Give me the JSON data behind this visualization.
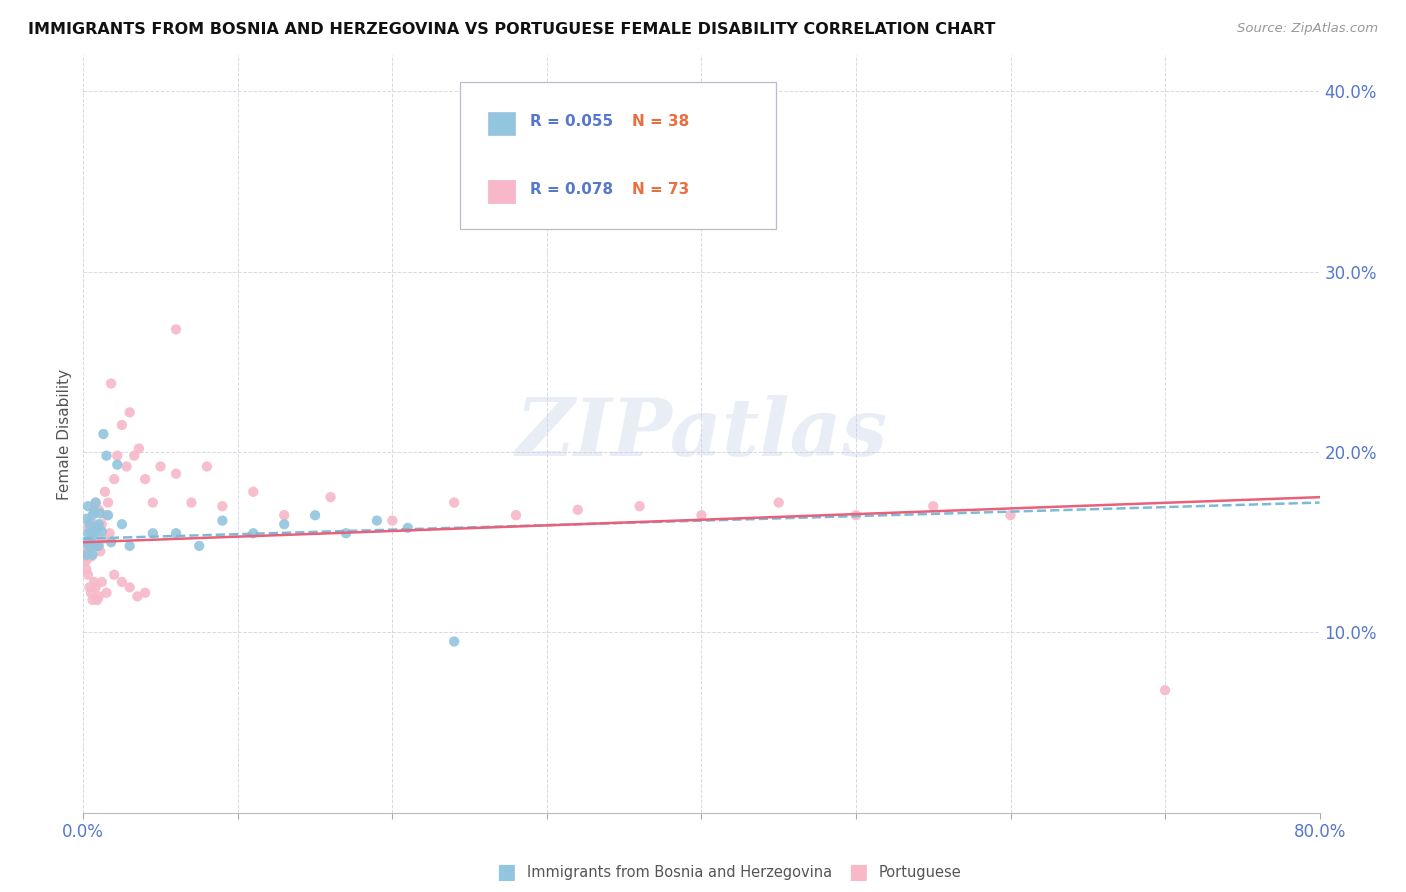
{
  "title": "IMMIGRANTS FROM BOSNIA AND HERZEGOVINA VS PORTUGUESE FEMALE DISABILITY CORRELATION CHART",
  "source_text": "Source: ZipAtlas.com",
  "ylabel": "Female Disability",
  "xlim": [
    0.0,
    0.8
  ],
  "ylim": [
    0.0,
    0.42
  ],
  "color_bosnia": "#92C5DE",
  "color_portuguese": "#F7B8C8",
  "line_color_bosnia": "#7BBBD6",
  "line_color_portuguese": "#E8607A",
  "watermark_color": "#C0D0E8",
  "background_color": "#FFFFFF",
  "grid_color": "#C8C8D8",
  "tick_color": "#5577CC",
  "title_color": "#111111",
  "source_color": "#999999",
  "legend_r_color": "#5577CC",
  "legend_n_color": "#E87040",
  "bosnia_x": [
    0.001,
    0.002,
    0.002,
    0.003,
    0.003,
    0.004,
    0.004,
    0.005,
    0.005,
    0.006,
    0.006,
    0.007,
    0.007,
    0.008,
    0.008,
    0.009,
    0.01,
    0.01,
    0.011,
    0.012,
    0.013,
    0.015,
    0.016,
    0.018,
    0.022,
    0.025,
    0.03,
    0.045,
    0.06,
    0.075,
    0.09,
    0.11,
    0.13,
    0.15,
    0.17,
    0.19,
    0.21,
    0.24
  ],
  "bosnia_y": [
    0.15,
    0.143,
    0.163,
    0.155,
    0.17,
    0.148,
    0.16,
    0.155,
    0.152,
    0.165,
    0.143,
    0.155,
    0.167,
    0.148,
    0.172,
    0.158,
    0.16,
    0.148,
    0.166,
    0.156,
    0.21,
    0.198,
    0.165,
    0.15,
    0.193,
    0.16,
    0.148,
    0.155,
    0.155,
    0.148,
    0.162,
    0.155,
    0.16,
    0.165,
    0.155,
    0.162,
    0.158,
    0.095
  ],
  "portuguese_x": [
    0.001,
    0.001,
    0.002,
    0.002,
    0.003,
    0.003,
    0.004,
    0.004,
    0.005,
    0.005,
    0.006,
    0.006,
    0.007,
    0.007,
    0.008,
    0.008,
    0.009,
    0.009,
    0.01,
    0.01,
    0.011,
    0.012,
    0.013,
    0.014,
    0.015,
    0.016,
    0.017,
    0.018,
    0.02,
    0.022,
    0.025,
    0.028,
    0.03,
    0.033,
    0.036,
    0.04,
    0.045,
    0.05,
    0.06,
    0.07,
    0.08,
    0.09,
    0.11,
    0.13,
    0.16,
    0.2,
    0.24,
    0.28,
    0.32,
    0.36,
    0.4,
    0.45,
    0.5,
    0.55,
    0.6,
    0.003,
    0.005,
    0.007,
    0.009,
    0.012,
    0.015,
    0.02,
    0.025,
    0.03,
    0.04,
    0.002,
    0.004,
    0.006,
    0.008,
    0.01,
    0.7,
    0.06,
    0.035
  ],
  "portuguese_y": [
    0.148,
    0.142,
    0.15,
    0.14,
    0.145,
    0.158,
    0.162,
    0.148,
    0.155,
    0.142,
    0.16,
    0.148,
    0.155,
    0.168,
    0.148,
    0.172,
    0.152,
    0.148,
    0.168,
    0.158,
    0.145,
    0.16,
    0.152,
    0.178,
    0.165,
    0.172,
    0.155,
    0.238,
    0.185,
    0.198,
    0.215,
    0.192,
    0.222,
    0.198,
    0.202,
    0.185,
    0.172,
    0.192,
    0.188,
    0.172,
    0.192,
    0.17,
    0.178,
    0.165,
    0.175,
    0.162,
    0.172,
    0.165,
    0.168,
    0.17,
    0.165,
    0.172,
    0.165,
    0.17,
    0.165,
    0.132,
    0.122,
    0.128,
    0.118,
    0.128,
    0.122,
    0.132,
    0.128,
    0.125,
    0.122,
    0.135,
    0.125,
    0.118,
    0.125,
    0.12,
    0.068,
    0.268,
    0.12
  ],
  "bosnia_line_x0": 0.0,
  "bosnia_line_x1": 0.8,
  "bosnia_line_y0": 0.152,
  "bosnia_line_y1": 0.172,
  "portuguese_line_x0": 0.0,
  "portuguese_line_x1": 0.8,
  "portuguese_line_y0": 0.15,
  "portuguese_line_y1": 0.175
}
